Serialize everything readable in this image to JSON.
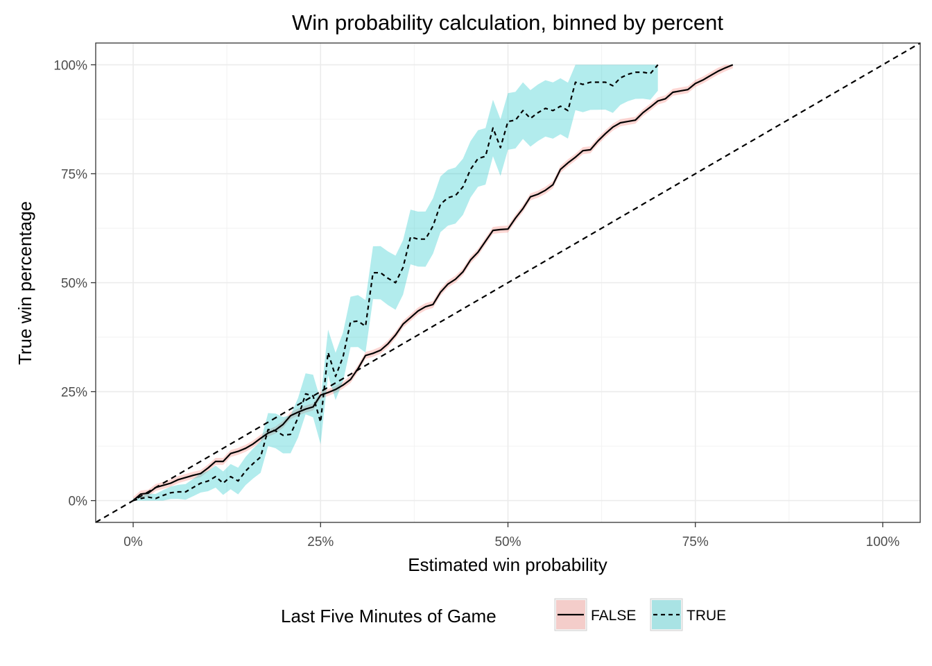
{
  "chart_data": {
    "type": "line",
    "title": "Win probability calculation, binned by percent",
    "xlabel": "Estimated win probability",
    "ylabel": "True win percentage",
    "xlim": [
      -0.05,
      1.05
    ],
    "ylim": [
      -0.05,
      1.05
    ],
    "x_ticks": [
      0,
      0.25,
      0.5,
      0.75,
      1
    ],
    "x_tick_labels": [
      "0%",
      "25%",
      "50%",
      "75%",
      "100%"
    ],
    "y_ticks": [
      0,
      0.25,
      0.5,
      0.75,
      1
    ],
    "y_tick_labels": [
      "0%",
      "25%",
      "50%",
      "75%",
      "100%"
    ],
    "grid": true,
    "reference_line": {
      "type": "identity",
      "style": "dashed",
      "color": "#000000"
    },
    "legend": {
      "title": "Last Five Minutes of Game",
      "position": "bottom",
      "entries": [
        "FALSE",
        "TRUE"
      ]
    },
    "series": [
      {
        "name": "FALSE",
        "line_style": "solid",
        "band_color": "#f8766d",
        "points": [
          [
            0.0,
            0.0
          ],
          [
            0.01,
            0.015
          ],
          [
            0.02,
            0.017
          ],
          [
            0.03,
            0.03
          ],
          [
            0.04,
            0.035
          ],
          [
            0.05,
            0.04
          ],
          [
            0.06,
            0.048
          ],
          [
            0.07,
            0.053
          ],
          [
            0.08,
            0.058
          ],
          [
            0.09,
            0.062
          ],
          [
            0.1,
            0.075
          ],
          [
            0.11,
            0.09
          ],
          [
            0.12,
            0.09
          ],
          [
            0.13,
            0.108
          ],
          [
            0.14,
            0.113
          ],
          [
            0.15,
            0.12
          ],
          [
            0.16,
            0.13
          ],
          [
            0.17,
            0.143
          ],
          [
            0.18,
            0.155
          ],
          [
            0.19,
            0.162
          ],
          [
            0.2,
            0.175
          ],
          [
            0.21,
            0.195
          ],
          [
            0.22,
            0.203
          ],
          [
            0.23,
            0.21
          ],
          [
            0.24,
            0.215
          ],
          [
            0.25,
            0.242
          ],
          [
            0.26,
            0.248
          ],
          [
            0.27,
            0.255
          ],
          [
            0.28,
            0.265
          ],
          [
            0.29,
            0.278
          ],
          [
            0.3,
            0.303
          ],
          [
            0.31,
            0.333
          ],
          [
            0.32,
            0.338
          ],
          [
            0.33,
            0.345
          ],
          [
            0.34,
            0.36
          ],
          [
            0.35,
            0.38
          ],
          [
            0.36,
            0.405
          ],
          [
            0.37,
            0.42
          ],
          [
            0.38,
            0.435
          ],
          [
            0.39,
            0.445
          ],
          [
            0.4,
            0.45
          ],
          [
            0.41,
            0.478
          ],
          [
            0.42,
            0.497
          ],
          [
            0.43,
            0.508
          ],
          [
            0.44,
            0.525
          ],
          [
            0.45,
            0.552
          ],
          [
            0.46,
            0.57
          ],
          [
            0.47,
            0.595
          ],
          [
            0.48,
            0.62
          ],
          [
            0.49,
            0.622
          ],
          [
            0.5,
            0.623
          ],
          [
            0.51,
            0.648
          ],
          [
            0.52,
            0.67
          ],
          [
            0.53,
            0.697
          ],
          [
            0.54,
            0.703
          ],
          [
            0.55,
            0.712
          ],
          [
            0.56,
            0.725
          ],
          [
            0.57,
            0.76
          ],
          [
            0.58,
            0.775
          ],
          [
            0.59,
            0.788
          ],
          [
            0.6,
            0.803
          ],
          [
            0.61,
            0.805
          ],
          [
            0.62,
            0.825
          ],
          [
            0.63,
            0.842
          ],
          [
            0.64,
            0.857
          ],
          [
            0.65,
            0.867
          ],
          [
            0.66,
            0.87
          ],
          [
            0.67,
            0.873
          ],
          [
            0.68,
            0.89
          ],
          [
            0.69,
            0.903
          ],
          [
            0.7,
            0.917
          ],
          [
            0.71,
            0.922
          ],
          [
            0.72,
            0.937
          ],
          [
            0.73,
            0.94
          ],
          [
            0.74,
            0.943
          ],
          [
            0.75,
            0.957
          ],
          [
            0.76,
            0.965
          ],
          [
            0.77,
            0.975
          ],
          [
            0.78,
            0.985
          ],
          [
            0.79,
            0.993
          ],
          [
            0.8,
            1.0
          ]
        ]
      },
      {
        "name": "TRUE",
        "line_style": "dashed",
        "band_color": "#00bfc4",
        "points": [
          [
            0.0,
            0.0
          ],
          [
            0.01,
            0.005
          ],
          [
            0.02,
            0.008
          ],
          [
            0.03,
            0.005
          ],
          [
            0.04,
            0.012
          ],
          [
            0.05,
            0.018
          ],
          [
            0.06,
            0.02
          ],
          [
            0.07,
            0.02
          ],
          [
            0.08,
            0.03
          ],
          [
            0.09,
            0.04
          ],
          [
            0.1,
            0.045
          ],
          [
            0.11,
            0.055
          ],
          [
            0.12,
            0.04
          ],
          [
            0.13,
            0.055
          ],
          [
            0.14,
            0.045
          ],
          [
            0.15,
            0.068
          ],
          [
            0.16,
            0.085
          ],
          [
            0.17,
            0.1
          ],
          [
            0.18,
            0.163
          ],
          [
            0.19,
            0.16
          ],
          [
            0.2,
            0.15
          ],
          [
            0.21,
            0.152
          ],
          [
            0.22,
            0.19
          ],
          [
            0.23,
            0.245
          ],
          [
            0.24,
            0.24
          ],
          [
            0.25,
            0.18
          ],
          [
            0.26,
            0.34
          ],
          [
            0.27,
            0.285
          ],
          [
            0.28,
            0.33
          ],
          [
            0.29,
            0.41
          ],
          [
            0.3,
            0.412
          ],
          [
            0.31,
            0.4
          ],
          [
            0.32,
            0.523
          ],
          [
            0.33,
            0.523
          ],
          [
            0.34,
            0.51
          ],
          [
            0.35,
            0.5
          ],
          [
            0.36,
            0.535
          ],
          [
            0.37,
            0.605
          ],
          [
            0.38,
            0.6
          ],
          [
            0.39,
            0.6
          ],
          [
            0.4,
            0.63
          ],
          [
            0.41,
            0.68
          ],
          [
            0.42,
            0.695
          ],
          [
            0.43,
            0.7
          ],
          [
            0.44,
            0.72
          ],
          [
            0.45,
            0.76
          ],
          [
            0.46,
            0.785
          ],
          [
            0.47,
            0.79
          ],
          [
            0.48,
            0.855
          ],
          [
            0.49,
            0.81
          ],
          [
            0.5,
            0.87
          ],
          [
            0.51,
            0.873
          ],
          [
            0.52,
            0.895
          ],
          [
            0.53,
            0.877
          ],
          [
            0.54,
            0.89
          ],
          [
            0.55,
            0.9
          ],
          [
            0.56,
            0.895
          ],
          [
            0.57,
            0.905
          ],
          [
            0.58,
            0.895
          ],
          [
            0.59,
            0.96
          ],
          [
            0.6,
            0.955
          ],
          [
            0.61,
            0.96
          ],
          [
            0.62,
            0.96
          ],
          [
            0.63,
            0.96
          ],
          [
            0.64,
            0.952
          ],
          [
            0.65,
            0.97
          ],
          [
            0.66,
            0.978
          ],
          [
            0.67,
            0.983
          ],
          [
            0.68,
            0.983
          ],
          [
            0.69,
            0.98
          ],
          [
            0.7,
            1.0
          ]
        ]
      }
    ]
  }
}
